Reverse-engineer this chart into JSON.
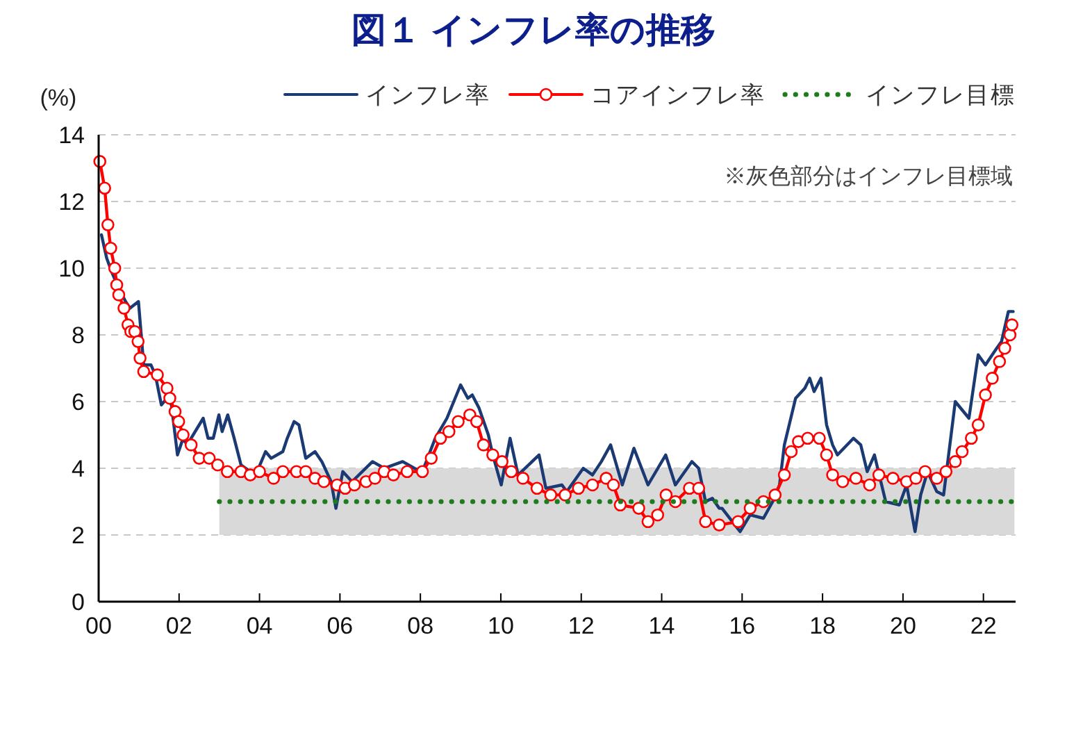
{
  "chart_data": {
    "type": "line",
    "title": "図１ インフレ率の推移",
    "ylabel": "(%)",
    "annotations": [
      "※灰色部分はインフレ目標域"
    ],
    "xlim": [
      2000,
      2022.8
    ],
    "ylim": [
      0,
      14
    ],
    "xticks": [
      {
        "value": 2000,
        "label": "00"
      },
      {
        "value": 2002,
        "label": "02"
      },
      {
        "value": 2004,
        "label": "04"
      },
      {
        "value": 2006,
        "label": "06"
      },
      {
        "value": 2008,
        "label": "08"
      },
      {
        "value": 2010,
        "label": "10"
      },
      {
        "value": 2012,
        "label": "12"
      },
      {
        "value": 2014,
        "label": "14"
      },
      {
        "value": 2016,
        "label": "16"
      },
      {
        "value": 2018,
        "label": "18"
      },
      {
        "value": 2020,
        "label": "20"
      },
      {
        "value": 2022,
        "label": "22"
      }
    ],
    "yticks": [
      0,
      2,
      4,
      6,
      8,
      10,
      12,
      14
    ],
    "grid": "y",
    "legend": "top",
    "series": [
      {
        "name": "インフレ率",
        "color": "#1b3a73",
        "marker": "none",
        "line_style": "solid",
        "x": [
          2000.07,
          2000.2,
          2000.32,
          2000.5,
          2000.67,
          2000.78,
          2000.99,
          2001.12,
          2001.3,
          2001.41,
          2001.56,
          2001.7,
          2001.81,
          2001.96,
          2002.1,
          2002.2,
          2002.6,
          2002.72,
          2002.85,
          2002.99,
          2003.07,
          2003.21,
          2003.37,
          2003.54,
          2003.77,
          2003.94,
          2004.15,
          2004.29,
          2004.58,
          2004.69,
          2004.86,
          2004.98,
          2005.15,
          2005.38,
          2005.55,
          2005.78,
          2005.9,
          2006.07,
          2006.3,
          2006.81,
          2007.1,
          2007.56,
          2007.85,
          2008.05,
          2008.37,
          2008.66,
          2009.0,
          2009.18,
          2009.29,
          2009.46,
          2009.69,
          2009.8,
          2010.01,
          2010.23,
          2010.43,
          2010.95,
          2011.12,
          2011.52,
          2011.64,
          2012.05,
          2012.28,
          2012.5,
          2012.73,
          2013.02,
          2013.31,
          2013.66,
          2014.1,
          2014.34,
          2014.75,
          2014.92,
          2015.09,
          2015.26,
          2015.43,
          2015.5,
          2015.95,
          2016.2,
          2016.53,
          2016.76,
          2016.93,
          2017.05,
          2017.33,
          2017.56,
          2017.68,
          2017.79,
          2017.96,
          2018.1,
          2018.25,
          2018.37,
          2018.77,
          2018.95,
          2019.11,
          2019.29,
          2019.57,
          2019.91,
          2020.09,
          2020.3,
          2020.44,
          2020.61,
          2020.84,
          2021.01,
          2021.3,
          2021.64,
          2021.87,
          2022.05,
          2022.33,
          2022.45,
          2022.62,
          2022.74
        ],
        "values": [
          11.0,
          10.3,
          9.9,
          9.4,
          9.0,
          8.8,
          9.0,
          7.1,
          7.1,
          6.8,
          5.9,
          6.1,
          5.9,
          4.4,
          4.9,
          4.7,
          5.5,
          4.9,
          4.9,
          5.6,
          5.1,
          5.6,
          4.9,
          4.1,
          3.9,
          3.9,
          4.5,
          4.3,
          4.5,
          4.9,
          5.4,
          5.3,
          4.3,
          4.5,
          4.2,
          3.6,
          2.8,
          3.9,
          3.6,
          4.2,
          4.0,
          4.2,
          4.0,
          3.9,
          4.9,
          5.5,
          6.5,
          6.1,
          6.2,
          5.8,
          5.0,
          4.4,
          3.5,
          4.9,
          3.8,
          4.4,
          3.4,
          3.5,
          3.3,
          4.0,
          3.8,
          4.2,
          4.7,
          3.5,
          4.6,
          3.5,
          4.4,
          3.5,
          4.2,
          4.0,
          3.0,
          3.1,
          2.8,
          2.8,
          2.1,
          2.6,
          2.5,
          3.0,
          3.5,
          4.7,
          6.1,
          6.4,
          6.7,
          6.3,
          6.7,
          5.3,
          4.7,
          4.4,
          4.9,
          4.7,
          3.9,
          4.4,
          3.0,
          2.9,
          3.5,
          2.1,
          3.2,
          3.9,
          3.3,
          3.2,
          6.0,
          5.5,
          7.4,
          7.1,
          7.6,
          7.8,
          8.7,
          8.7
        ]
      },
      {
        "name": "コアインフレ率",
        "color": "#ff0000",
        "marker": "circle",
        "line_style": "solid",
        "x": [
          2000.03,
          2000.15,
          2000.23,
          2000.3,
          2000.4,
          2000.45,
          2000.5,
          2000.63,
          2000.73,
          2000.8,
          2000.9,
          2000.98,
          2001.03,
          2001.12,
          2001.46,
          2001.7,
          2001.77,
          2001.9,
          2001.99,
          2002.1,
          2002.3,
          2002.5,
          2002.75,
          2002.96,
          2003.2,
          2003.54,
          2003.77,
          2004.0,
          2004.35,
          2004.58,
          2004.92,
          2005.15,
          2005.38,
          2005.6,
          2005.93,
          2006.13,
          2006.36,
          2006.65,
          2006.87,
          2007.1,
          2007.33,
          2007.67,
          2008.05,
          2008.27,
          2008.5,
          2008.71,
          2008.94,
          2009.23,
          2009.4,
          2009.57,
          2009.8,
          2010.03,
          2010.26,
          2010.55,
          2010.9,
          2011.24,
          2011.6,
          2011.93,
          2012.28,
          2012.62,
          2012.8,
          2012.97,
          2013.43,
          2013.66,
          2013.9,
          2014.11,
          2014.34,
          2014.69,
          2014.92,
          2015.09,
          2015.43,
          2015.9,
          2016.2,
          2016.53,
          2016.82,
          2017.05,
          2017.22,
          2017.4,
          2017.63,
          2017.92,
          2018.1,
          2018.25,
          2018.5,
          2018.83,
          2019.17,
          2019.4,
          2019.75,
          2020.09,
          2020.32,
          2020.55,
          2020.84,
          2021.07,
          2021.3,
          2021.47,
          2021.7,
          2021.87,
          2022.05,
          2022.22,
          2022.4,
          2022.53,
          2022.66,
          2022.71
        ],
        "values": [
          13.2,
          12.4,
          11.3,
          10.6,
          10.0,
          9.5,
          9.2,
          8.8,
          8.3,
          8.1,
          8.1,
          7.8,
          7.3,
          6.9,
          6.8,
          6.4,
          6.1,
          5.7,
          5.4,
          5.0,
          4.7,
          4.3,
          4.3,
          4.1,
          3.9,
          3.9,
          3.8,
          3.9,
          3.7,
          3.9,
          3.9,
          3.9,
          3.7,
          3.6,
          3.5,
          3.4,
          3.5,
          3.6,
          3.7,
          3.9,
          3.8,
          3.9,
          3.9,
          4.3,
          4.9,
          5.1,
          5.4,
          5.6,
          5.4,
          4.7,
          4.4,
          4.2,
          3.9,
          3.7,
          3.4,
          3.2,
          3.2,
          3.4,
          3.5,
          3.7,
          3.5,
          2.9,
          2.8,
          2.4,
          2.6,
          3.2,
          3.0,
          3.4,
          3.4,
          2.4,
          2.3,
          2.4,
          2.8,
          3.0,
          3.2,
          3.8,
          4.5,
          4.8,
          4.9,
          4.9,
          4.4,
          3.8,
          3.6,
          3.7,
          3.5,
          3.8,
          3.7,
          3.6,
          3.7,
          3.9,
          3.7,
          3.9,
          4.2,
          4.5,
          4.9,
          5.3,
          6.2,
          6.7,
          7.2,
          7.6,
          8.0,
          8.3
        ]
      },
      {
        "name": "インフレ目標",
        "color": "#1e7b1e",
        "marker": "none",
        "line_style": "dotted",
        "x": [
          2003,
          2022.77
        ],
        "values": [
          3,
          3
        ],
        "lower": [
          2,
          2
        ],
        "upper": [
          4,
          4
        ]
      }
    ]
  }
}
